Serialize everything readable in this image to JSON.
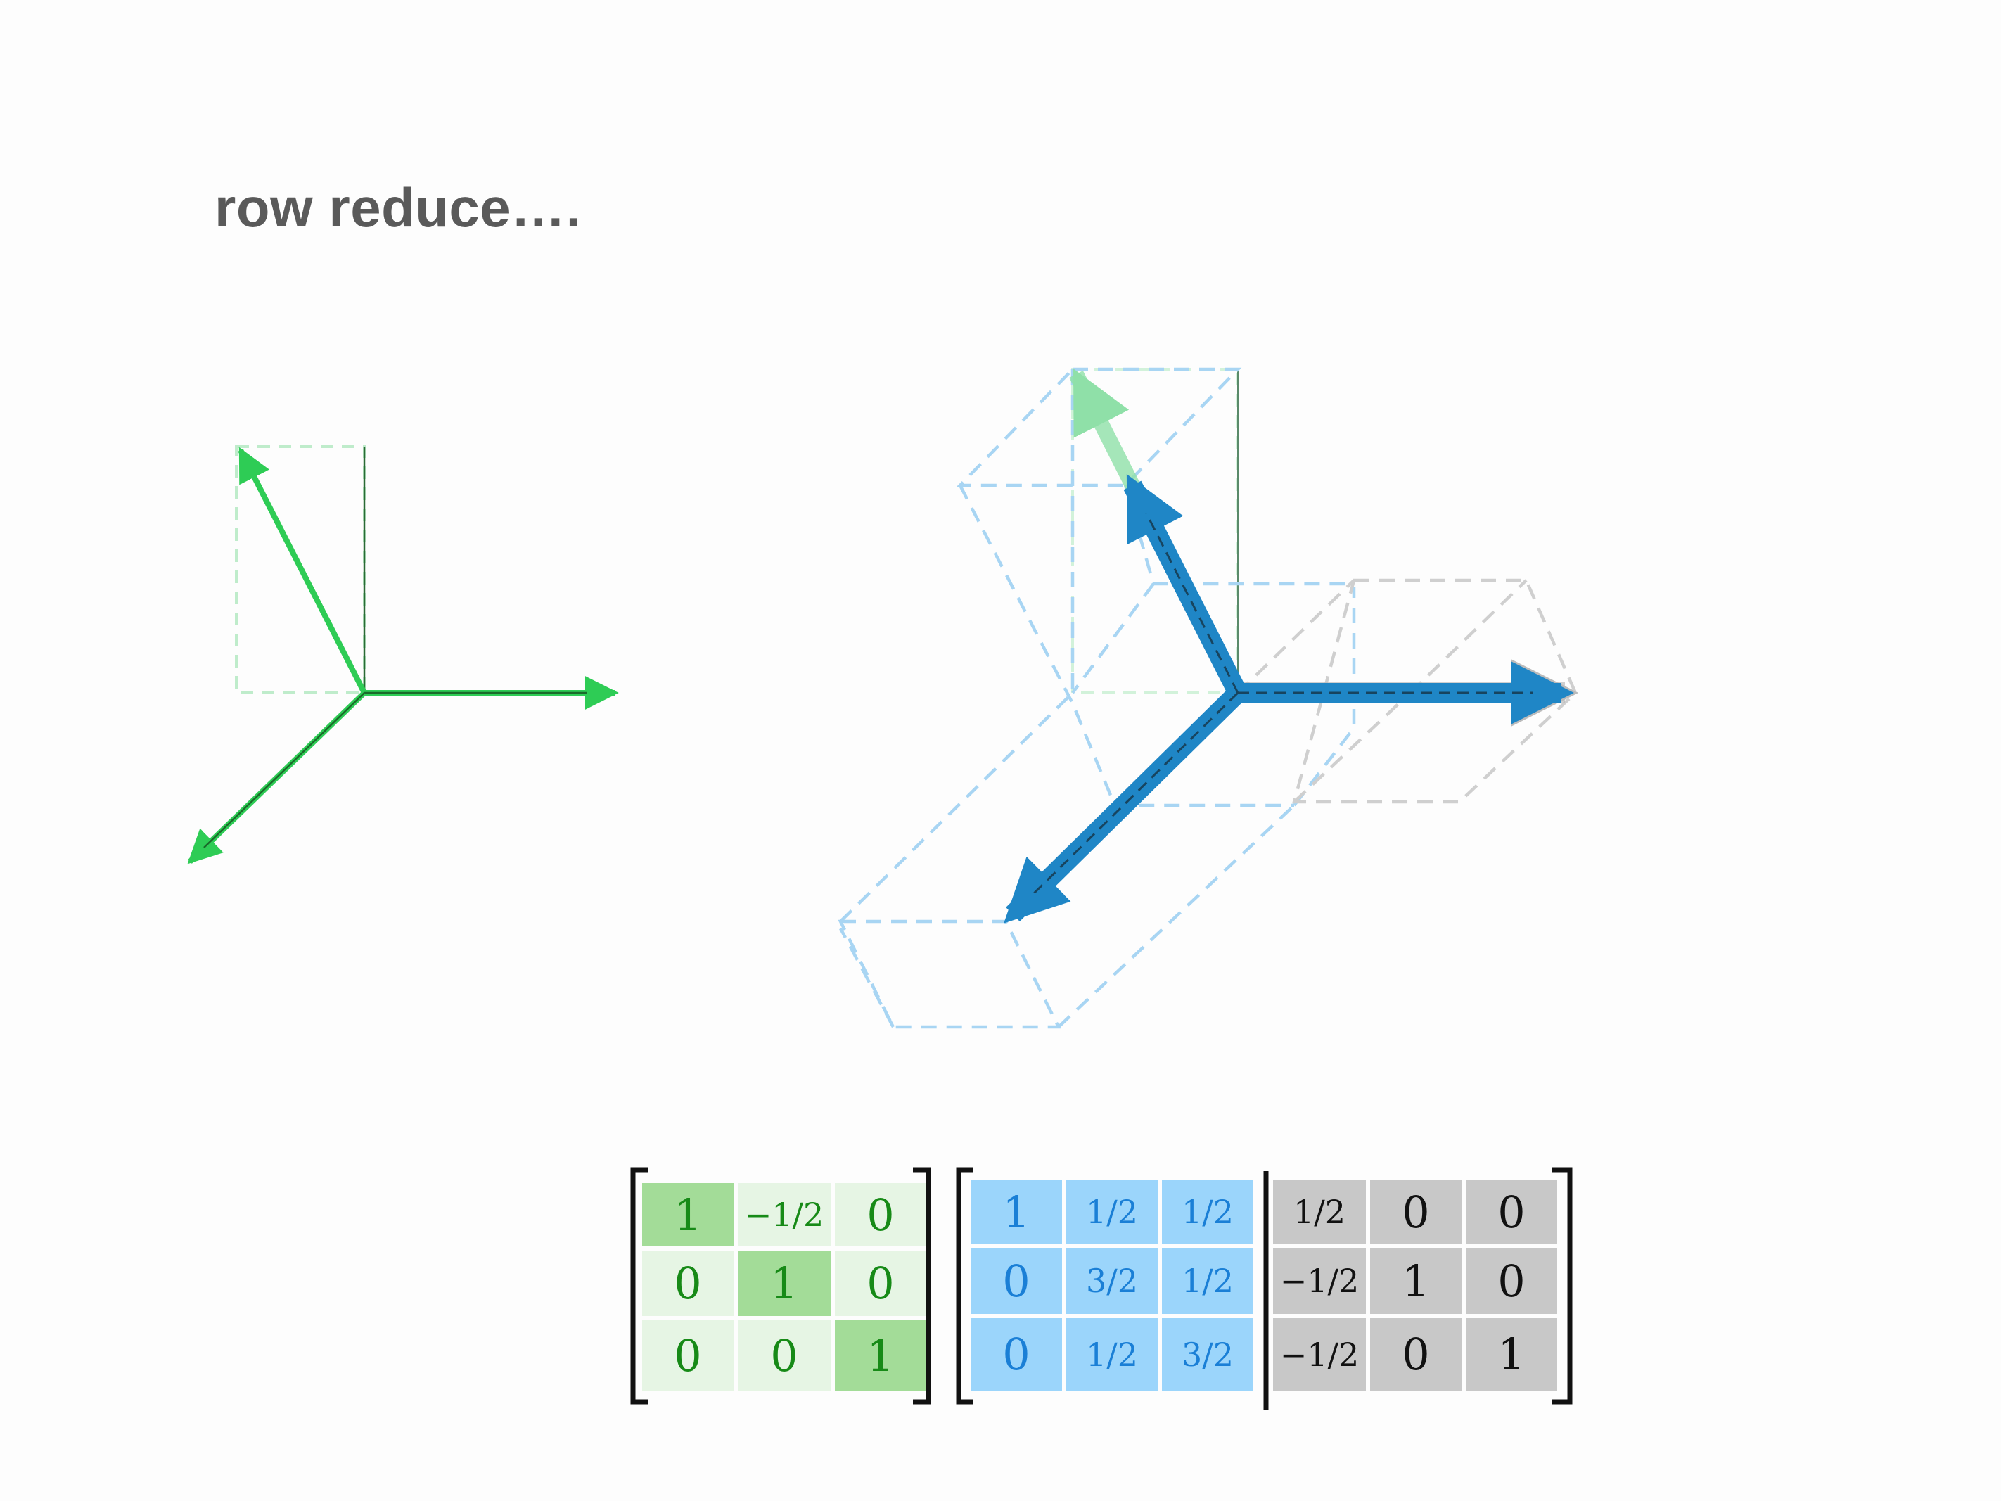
{
  "title": "row reduce….",
  "colors": {
    "green_arrow": "#2ecc55",
    "green_dark": "#1a8a2a",
    "blue_arrow": "#1f86c6",
    "blue_dash": "#9fd0f2",
    "gray_dash": "#c8c8c8",
    "green_cell_light": "#e6f5e4",
    "green_cell_strong": "#a3dc98",
    "blue_cell": "#9bd5fb",
    "gray_cell": "#c8c8c8"
  },
  "matrices": {
    "left": {
      "rows": [
        [
          "1",
          "−1/2",
          "0"
        ],
        [
          "0",
          "1",
          "0"
        ],
        [
          "0",
          "0",
          "1"
        ]
      ],
      "highlight_diagonal": true
    },
    "right_blue": {
      "rows": [
        [
          "1",
          "1/2",
          "1/2"
        ],
        [
          "0",
          "3/2",
          "1/2"
        ],
        [
          "0",
          "1/2",
          "3/2"
        ]
      ]
    },
    "right_gray": {
      "rows": [
        [
          "1/2",
          "0",
          "0"
        ],
        [
          "−1/2",
          "1",
          "0"
        ],
        [
          "−1/2",
          "0",
          "1"
        ]
      ]
    }
  }
}
